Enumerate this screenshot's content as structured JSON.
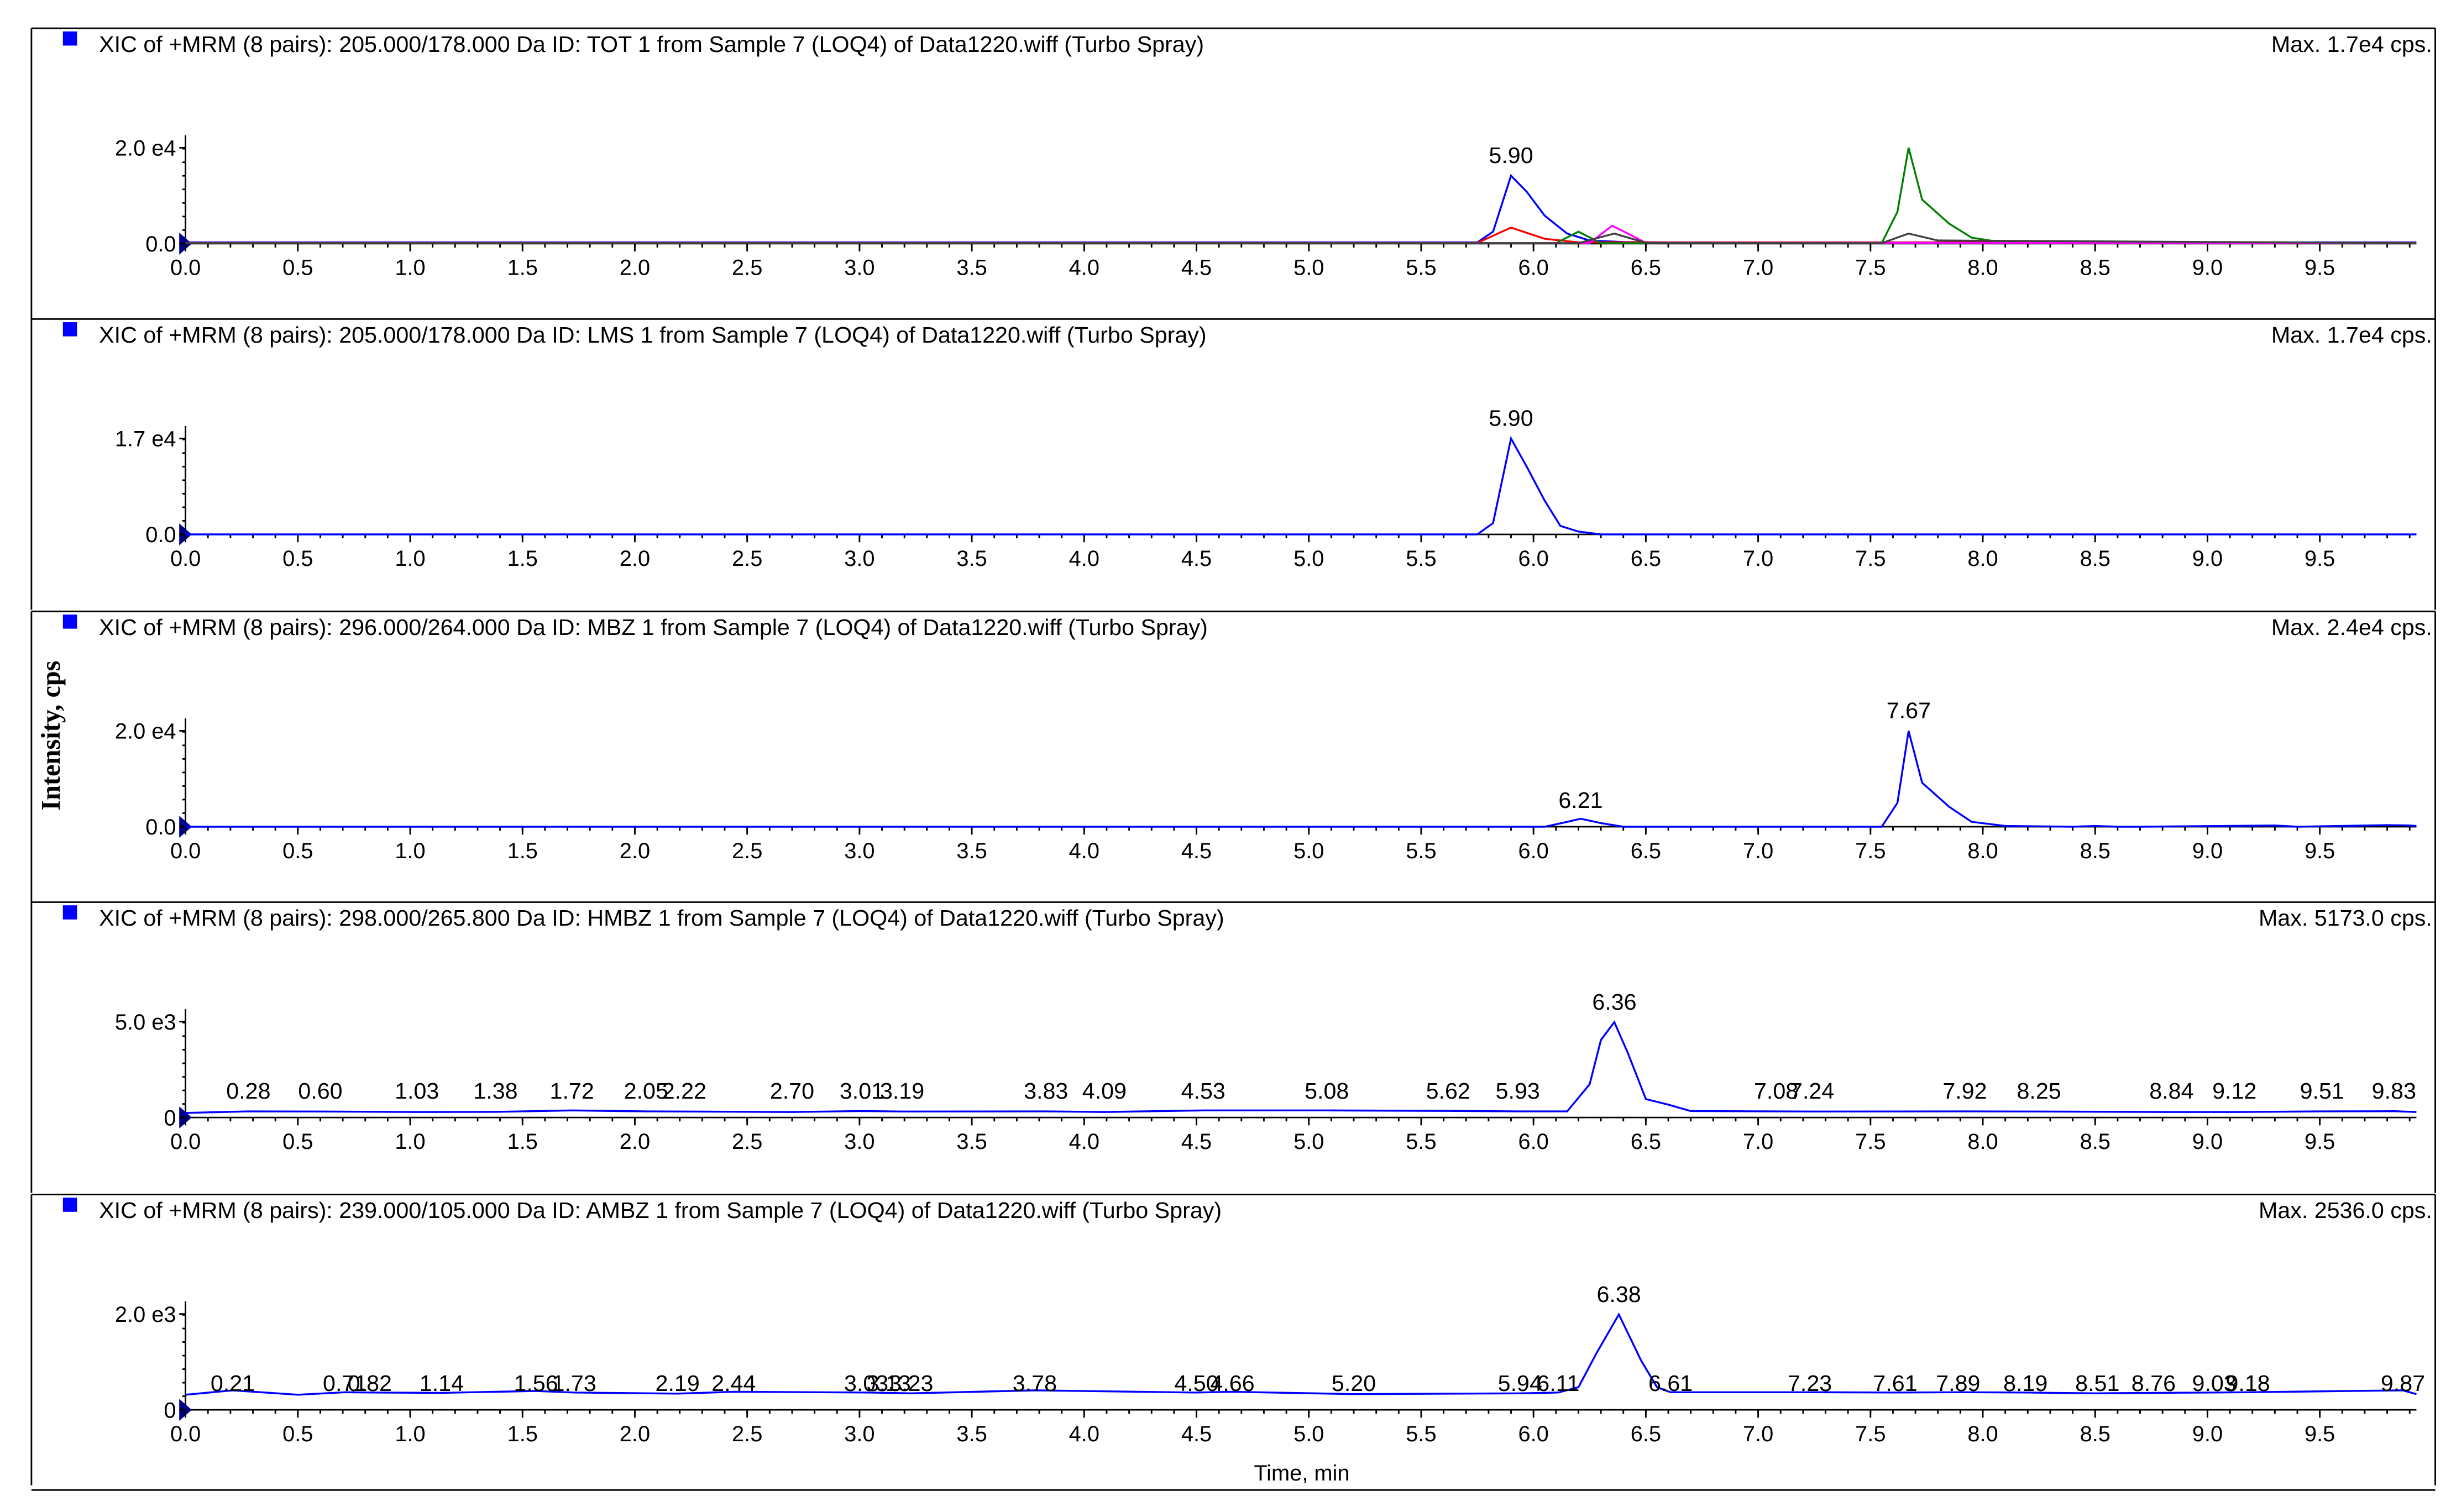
{
  "y_axis_title": "Intensity, cps",
  "x_axis_title": "Time, min",
  "x_ticks": [
    "0.0",
    "0.5",
    "1.0",
    "1.5",
    "2.0",
    "2.5",
    "3.0",
    "3.5",
    "4.0",
    "4.5",
    "5.0",
    "5.5",
    "6.0",
    "6.5",
    "7.0",
    "7.5",
    "8.0",
    "8.5",
    "9.0",
    "9.5"
  ],
  "colors": {
    "blue": "#0000ff",
    "red": "#ff0000",
    "green": "#008000",
    "magenta": "#ff00ff",
    "dark": "#404040",
    "header_marker": "#0000ff"
  },
  "panels": [
    {
      "header": "XIC of +MRM (8 pairs): 205.000/178.000 Da ID:  TOT 1 from Sample 7 (LOQ4) of Data1220.wiff (Turbo Spray)",
      "max_label": "Max. 1.7e4 cps.",
      "y_ticks": [
        "2.0 e4",
        "0.0"
      ]
    },
    {
      "header": "XIC of +MRM (8 pairs): 205.000/178.000 Da ID: LMS 1 from Sample 7 (LOQ4) of Data1220.wiff (Turbo Spray)",
      "max_label": "Max. 1.7e4 cps.",
      "y_ticks": [
        "1.7 e4",
        "0.0"
      ]
    },
    {
      "header": "XIC of +MRM (8 pairs): 296.000/264.000 Da ID:  MBZ 1 from Sample 7 (LOQ4) of Data1220.wiff (Turbo Spray)",
      "max_label": "Max. 2.4e4 cps.",
      "y_ticks": [
        "2.0 e4",
        "0.0"
      ]
    },
    {
      "header": "XIC of +MRM (8 pairs): 298.000/265.800 Da ID:  HMBZ 1 from Sample 7 (LOQ4) of Data1220.wiff (Turbo Spray)",
      "max_label": "Max. 5173.0 cps.",
      "y_ticks": [
        "5.0 e3",
        "0"
      ]
    },
    {
      "header": "XIC of +MRM (8 pairs): 239.000/105.000 Da ID: AMBZ 1 from Sample 7 (LOQ4) of Data1220.wiff (Turbo Spray)",
      "max_label": "Max. 2536.0 cps.",
      "y_ticks": [
        "2.0 e3",
        "0"
      ]
    }
  ],
  "chart_data": [
    {
      "type": "line",
      "xlim": [
        0,
        9.93
      ],
      "ylim": [
        0,
        24000
      ],
      "peak_labels": [
        {
          "x": 5.9,
          "y": 17000,
          "label": "5.90"
        }
      ],
      "series": [
        {
          "color": "blue",
          "x": [
            0,
            1,
            2,
            3,
            4,
            5,
            5.75,
            5.82,
            5.9,
            5.97,
            6.05,
            6.15,
            6.25,
            6.4,
            6.6,
            7,
            8,
            9,
            9.93
          ],
          "y": [
            300,
            300,
            300,
            300,
            300,
            300,
            300,
            3000,
            17000,
            13000,
            7000,
            2500,
            800,
            400,
            300,
            300,
            300,
            300,
            300
          ]
        },
        {
          "color": "red",
          "x": [
            0,
            5.75,
            5.9,
            6.05,
            6.2,
            9.93
          ],
          "y": [
            200,
            200,
            4000,
            1200,
            300,
            200
          ]
        },
        {
          "color": "green",
          "x": [
            0,
            6.1,
            6.2,
            6.3,
            7.55,
            7.62,
            7.67,
            7.73,
            7.85,
            7.95,
            8.1,
            9.93
          ],
          "y": [
            100,
            100,
            3000,
            100,
            100,
            8000,
            24000,
            11000,
            5000,
            1500,
            200,
            100
          ]
        },
        {
          "color": "magenta",
          "x": [
            0,
            6.25,
            6.35,
            6.42,
            6.5,
            9.93
          ],
          "y": [
            100,
            100,
            4500,
            2500,
            200,
            100
          ]
        },
        {
          "color": "dark",
          "x": [
            0,
            6.2,
            6.36,
            6.5,
            7.55,
            7.67,
            7.8,
            9.93
          ],
          "y": [
            100,
            100,
            2500,
            200,
            100,
            2500,
            800,
            100
          ]
        }
      ]
    },
    {
      "type": "line",
      "xlim": [
        0,
        9.93
      ],
      "ylim": [
        0,
        17000
      ],
      "peak_labels": [
        {
          "x": 5.9,
          "y": 17000,
          "label": "5.90"
        }
      ],
      "series": [
        {
          "color": "blue",
          "x": [
            0,
            5.75,
            5.82,
            5.9,
            5.97,
            6.05,
            6.12,
            6.2,
            6.3,
            9.93
          ],
          "y": [
            0,
            0,
            2000,
            17000,
            12000,
            6000,
            1500,
            500,
            0,
            0
          ]
        }
      ]
    },
    {
      "type": "line",
      "xlim": [
        0,
        9.93
      ],
      "ylim": [
        0,
        24000
      ],
      "peak_labels": [
        {
          "x": 6.21,
          "y": 2000,
          "label": "6.21"
        },
        {
          "x": 7.67,
          "y": 24000,
          "label": "7.67"
        }
      ],
      "series": [
        {
          "color": "blue",
          "x": [
            0,
            6.05,
            6.15,
            6.21,
            6.3,
            6.4,
            7.55,
            7.62,
            7.67,
            7.73,
            7.85,
            7.95,
            8.1,
            8.4,
            8.5,
            8.6,
            8.7,
            9.3,
            9.4,
            9.8,
            9.9,
            9.93
          ],
          "y": [
            0,
            0,
            1200,
            2000,
            900,
            0,
            0,
            6000,
            24000,
            11000,
            5000,
            1200,
            200,
            0,
            200,
            0,
            0,
            300,
            0,
            400,
            300,
            200
          ]
        }
      ]
    },
    {
      "type": "line",
      "xlim": [
        0,
        9.93
      ],
      "ylim": [
        0,
        5200
      ],
      "peak_labels": [
        {
          "x": 0.28,
          "y": 450,
          "label": "0.28"
        },
        {
          "x": 0.6,
          "y": 450,
          "label": "0.60"
        },
        {
          "x": 1.03,
          "y": 450,
          "label": "1.03"
        },
        {
          "x": 1.38,
          "y": 450,
          "label": "1.38"
        },
        {
          "x": 1.72,
          "y": 450,
          "label": "1.72"
        },
        {
          "x": 2.05,
          "y": 450,
          "label": "2.05"
        },
        {
          "x": 2.22,
          "y": 450,
          "label": "2.22"
        },
        {
          "x": 2.7,
          "y": 450,
          "label": "2.70"
        },
        {
          "x": 3.01,
          "y": 450,
          "label": "3.01"
        },
        {
          "x": 3.19,
          "y": 450,
          "label": "3.19"
        },
        {
          "x": 3.83,
          "y": 450,
          "label": "3.83"
        },
        {
          "x": 4.09,
          "y": 450,
          "label": "4.09"
        },
        {
          "x": 4.53,
          "y": 450,
          "label": "4.53"
        },
        {
          "x": 5.08,
          "y": 450,
          "label": "5.08"
        },
        {
          "x": 5.62,
          "y": 450,
          "label": "5.62"
        },
        {
          "x": 5.93,
          "y": 450,
          "label": "5.93"
        },
        {
          "x": 6.36,
          "y": 5173,
          "label": "6.36"
        },
        {
          "x": 7.08,
          "y": 450,
          "label": "7.08"
        },
        {
          "x": 7.24,
          "y": 450,
          "label": "7.24"
        },
        {
          "x": 7.92,
          "y": 450,
          "label": "7.92"
        },
        {
          "x": 8.25,
          "y": 450,
          "label": "8.25"
        },
        {
          "x": 8.84,
          "y": 450,
          "label": "8.84"
        },
        {
          "x": 9.12,
          "y": 450,
          "label": "9.12"
        },
        {
          "x": 9.51,
          "y": 450,
          "label": "9.51"
        },
        {
          "x": 9.83,
          "y": 450,
          "label": "9.83"
        }
      ],
      "series": [
        {
          "color": "blue",
          "x": [
            0,
            0.28,
            0.6,
            1.03,
            1.38,
            1.72,
            2.05,
            2.22,
            2.7,
            3.01,
            3.19,
            3.83,
            4.09,
            4.53,
            5.08,
            5.62,
            5.93,
            6.15,
            6.25,
            6.3,
            6.36,
            6.42,
            6.5,
            6.6,
            6.7,
            7.08,
            7.24,
            7.92,
            8.25,
            8.84,
            9.12,
            9.51,
            9.83,
            9.93
          ],
          "y": [
            250,
            330,
            320,
            300,
            310,
            380,
            330,
            320,
            300,
            350,
            320,
            330,
            300,
            380,
            380,
            360,
            330,
            330,
            1800,
            4200,
            5173,
            3500,
            1000,
            700,
            350,
            330,
            320,
            330,
            320,
            300,
            300,
            330,
            340,
            300
          ]
        }
      ]
    },
    {
      "type": "line",
      "xlim": [
        0,
        9.93
      ],
      "ylim": [
        0,
        2550
      ],
      "peak_labels": [
        {
          "x": 0.21,
          "y": 400,
          "label": "0.21"
        },
        {
          "x": 0.71,
          "y": 400,
          "label": "0.71"
        },
        {
          "x": 0.82,
          "y": 400,
          "label": "0.82"
        },
        {
          "x": 1.14,
          "y": 400,
          "label": "1.14"
        },
        {
          "x": 1.56,
          "y": 400,
          "label": "1.56"
        },
        {
          "x": 1.73,
          "y": 400,
          "label": "1.73"
        },
        {
          "x": 2.19,
          "y": 400,
          "label": "2.19"
        },
        {
          "x": 2.44,
          "y": 400,
          "label": "2.44"
        },
        {
          "x": 3.03,
          "y": 400,
          "label": "3.03"
        },
        {
          "x": 3.13,
          "y": 400,
          "label": "3.13"
        },
        {
          "x": 3.23,
          "y": 400,
          "label": "3.23"
        },
        {
          "x": 3.78,
          "y": 400,
          "label": "3.78"
        },
        {
          "x": 4.5,
          "y": 400,
          "label": "4.50"
        },
        {
          "x": 4.66,
          "y": 400,
          "label": "4.66"
        },
        {
          "x": 5.2,
          "y": 400,
          "label": "5.20"
        },
        {
          "x": 5.94,
          "y": 400,
          "label": "5.94"
        },
        {
          "x": 6.11,
          "y": 400,
          "label": "6.11"
        },
        {
          "x": 6.38,
          "y": 2536,
          "label": "6.38"
        },
        {
          "x": 6.61,
          "y": 400,
          "label": "6.61"
        },
        {
          "x": 7.23,
          "y": 400,
          "label": "7.23"
        },
        {
          "x": 7.61,
          "y": 400,
          "label": "7.61"
        },
        {
          "x": 7.89,
          "y": 400,
          "label": "7.89"
        },
        {
          "x": 8.19,
          "y": 400,
          "label": "8.19"
        },
        {
          "x": 8.51,
          "y": 400,
          "label": "8.51"
        },
        {
          "x": 8.76,
          "y": 400,
          "label": "8.76"
        },
        {
          "x": 9.03,
          "y": 400,
          "label": "9.03"
        },
        {
          "x": 9.18,
          "y": 400,
          "label": "9.18"
        },
        {
          "x": 9.87,
          "y": 400,
          "label": "9.87"
        }
      ],
      "series": [
        {
          "color": "blue",
          "x": [
            0,
            0.21,
            0.5,
            0.71,
            0.82,
            1.14,
            1.56,
            1.73,
            2.19,
            2.44,
            3.03,
            3.13,
            3.23,
            3.78,
            4.5,
            4.66,
            5.2,
            5.94,
            6.11,
            6.2,
            6.28,
            6.38,
            6.48,
            6.55,
            6.61,
            7.23,
            7.61,
            7.89,
            8.19,
            8.51,
            8.76,
            9.03,
            9.18,
            9.87,
            9.93
          ],
          "y": [
            400,
            520,
            400,
            470,
            460,
            450,
            500,
            460,
            430,
            480,
            460,
            450,
            440,
            520,
            460,
            480,
            420,
            440,
            460,
            600,
            1500,
            2536,
            1300,
            600,
            470,
            470,
            460,
            470,
            460,
            440,
            450,
            460,
            470,
            520,
            420
          ]
        }
      ]
    }
  ]
}
